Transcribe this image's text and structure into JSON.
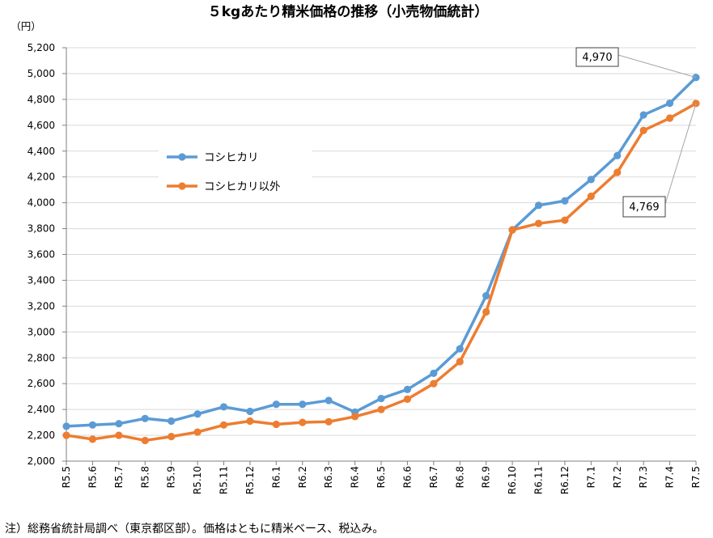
{
  "chart_data": {
    "type": "line",
    "title": "５kgあたり精米価格の推移（小売物価統計）",
    "ylabel": "（円）",
    "ylim": [
      2000,
      5200
    ],
    "ytick_step": 200,
    "grid": true,
    "legend_position": "left-middle",
    "categories": [
      "R5.5",
      "R5.6",
      "R5.7",
      "R5.8",
      "R5.9",
      "R5.10",
      "R5.11",
      "R5.12",
      "R6.1",
      "R6.2",
      "R6.3",
      "R6.4",
      "R6.5",
      "R6.6",
      "R6.7",
      "R6.8",
      "R6.9",
      "R6.10",
      "R6.11",
      "R6.12",
      "R7.1",
      "R7.2",
      "R7.3",
      "R7.4",
      "R7.5"
    ],
    "series": [
      {
        "name": "コシヒカリ",
        "color": "#5B9BD5",
        "values": [
          2270,
          2280,
          2290,
          2330,
          2310,
          2365,
          2420,
          2385,
          2440,
          2440,
          2470,
          2380,
          2485,
          2555,
          2680,
          2870,
          3280,
          3790,
          3980,
          4015,
          4180,
          4365,
          4680,
          4770,
          4970
        ]
      },
      {
        "name": "コシヒカリ以外",
        "color": "#ED7D31",
        "values": [
          2200,
          2170,
          2200,
          2160,
          2190,
          2225,
          2280,
          2310,
          2285,
          2300,
          2305,
          2345,
          2400,
          2480,
          2600,
          2770,
          3155,
          3790,
          3840,
          3865,
          4050,
          4235,
          4560,
          4655,
          4769
        ]
      }
    ],
    "annotations": [
      {
        "text": "4,970",
        "series": 0,
        "index": 24
      },
      {
        "text": "4,769",
        "series": 1,
        "index": 24
      }
    ]
  },
  "footnote": "注）総務省統計局調べ（東京都区部）。価格はともに精米ベース、税込み。"
}
